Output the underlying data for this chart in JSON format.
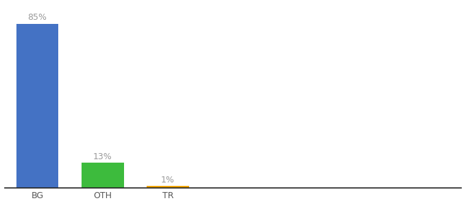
{
  "categories": [
    "BG",
    "OTH",
    "TR"
  ],
  "values": [
    85,
    13,
    1
  ],
  "bar_colors": [
    "#4472c4",
    "#3dbb3d",
    "#f0a500"
  ],
  "labels": [
    "85%",
    "13%",
    "1%"
  ],
  "ylim": [
    0,
    95
  ],
  "label_fontsize": 9,
  "tick_fontsize": 9,
  "background_color": "#ffffff",
  "label_color": "#999999",
  "tick_color": "#555555",
  "bar_positions": [
    0.5,
    1.5,
    2.5
  ],
  "xlim": [
    0,
    7
  ],
  "bar_width": 0.65
}
